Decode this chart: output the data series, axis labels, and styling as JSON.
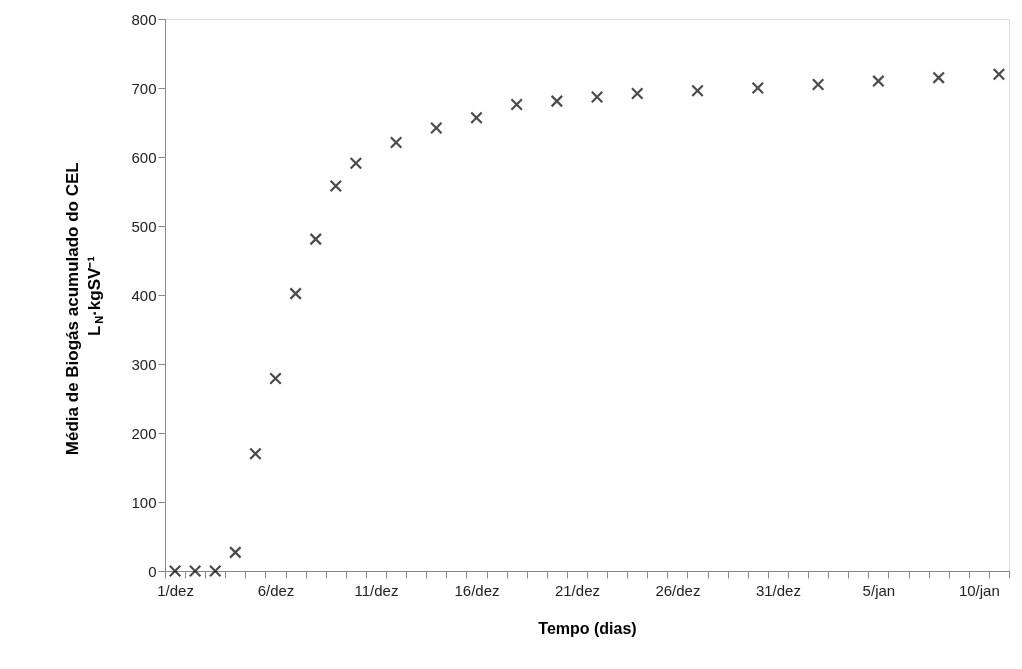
{
  "chart_data": {
    "type": "scatter",
    "xlabel": "Tempo  (dias)",
    "ylabel": [
      "Média de Biogás acumulado do CEL",
      "L$_{N}$·kgSV⁻¹"
    ],
    "categories": [
      "1/dez",
      null,
      null,
      null,
      null,
      "6/dez",
      null,
      null,
      null,
      null,
      "11/dez",
      null,
      null,
      null,
      null,
      "16/dez",
      null,
      null,
      null,
      null,
      "21/dez",
      null,
      null,
      null,
      null,
      "26/dez",
      null,
      null,
      null,
      null,
      "31/dez",
      null,
      null,
      null,
      null,
      "5/jan",
      null,
      null,
      null,
      null,
      "10/jan",
      null
    ],
    "series": [
      {
        "color": "#000000",
        "values": [
          0,
          0,
          0,
          27,
          170,
          279,
          402,
          481,
          558,
          591,
          null,
          621,
          null,
          642,
          null,
          657,
          null,
          676,
          null,
          681,
          null,
          687,
          null,
          692,
          null,
          null,
          696,
          null,
          null,
          700,
          null,
          null,
          705,
          null,
          null,
          710,
          null,
          null,
          715,
          null,
          null,
          720
        ]
      }
    ],
    "marker": "cross",
    "grid": false,
    "ylim": [
      0,
      800
    ],
    "yticks": [
      0,
      100,
      200,
      300,
      400,
      500,
      600,
      700,
      800
    ]
  }
}
